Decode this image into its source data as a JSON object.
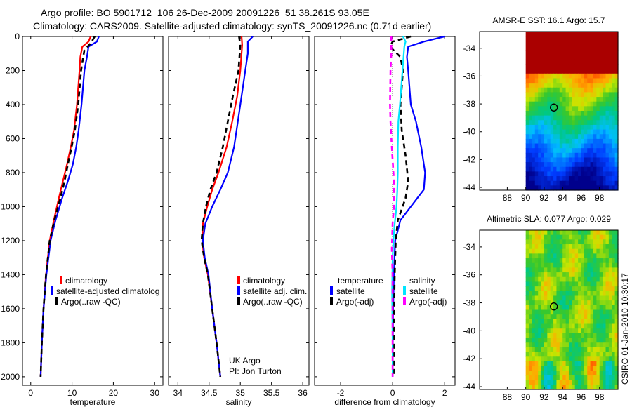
{
  "title_line1": "Argo profile: BO 5901712_106 26-Dec-2009 20091226_51 38.261S 93.05E",
  "title_line2": "Climatology: CARS2009. Satellite-adjusted climatology: synTS_20091226.nc (0.71d earlier)",
  "side_credit": "CSIRO 01-Jan-2010 10:30:17",
  "colors": {
    "climatology": "#ff0000",
    "satellite": "#0000ff",
    "argo": "#000000",
    "cyan": "#00e5ff",
    "magenta": "#ff00ff"
  },
  "chart_data": [
    {
      "type": "line",
      "id": "temperature",
      "xlabel": "temperature",
      "xlim": [
        -2,
        32
      ],
      "ylim": [
        0,
        2050
      ],
      "xticks": [
        "0",
        "10",
        "20",
        "30"
      ],
      "xtick_values": [
        0,
        10,
        20,
        30
      ],
      "yticks": [
        "0",
        "200",
        "400",
        "600",
        "800",
        "1000",
        "1200",
        "1400",
        "1600",
        "1800",
        "2000"
      ],
      "ytick_values": [
        0,
        200,
        400,
        600,
        800,
        1000,
        1200,
        1400,
        1600,
        1800,
        2000
      ],
      "legend": [
        "climatology",
        "satellite-adjusted climatolog",
        "Argo(..raw -QC)"
      ],
      "series": [
        {
          "name": "climatology",
          "color": "#ff0000",
          "points": [
            [
              14.5,
              0
            ],
            [
              14,
              30
            ],
            [
              12.5,
              60
            ],
            [
              12,
              120
            ],
            [
              11.8,
              200
            ],
            [
              11.2,
              400
            ],
            [
              10.5,
              550
            ],
            [
              9.7,
              650
            ],
            [
              8.8,
              750
            ],
            [
              7.8,
              850
            ],
            [
              6.8,
              950
            ],
            [
              5.6,
              1080
            ],
            [
              4.6,
              1200
            ],
            [
              3.7,
              1400
            ],
            [
              3.1,
              1600
            ],
            [
              2.7,
              1800
            ],
            [
              2.4,
              2000
            ]
          ]
        },
        {
          "name": "satellite-adjusted climatolog",
          "color": "#0000ff",
          "points": [
            [
              16.5,
              0
            ],
            [
              16,
              30
            ],
            [
              14,
              60
            ],
            [
              13.6,
              120
            ],
            [
              13,
              200
            ],
            [
              12.3,
              400
            ],
            [
              11.6,
              550
            ],
            [
              11,
              650
            ],
            [
              10.2,
              750
            ],
            [
              9,
              850
            ],
            [
              7.6,
              950
            ],
            [
              6,
              1080
            ],
            [
              4.8,
              1200
            ],
            [
              3.8,
              1400
            ],
            [
              3.1,
              1600
            ],
            [
              2.7,
              1800
            ],
            [
              2.4,
              2000
            ]
          ]
        },
        {
          "name": "Argo(..raw -QC)",
          "color": "#000000",
          "dash": true,
          "points": [
            [
              15.5,
              0
            ],
            [
              14.5,
              40
            ],
            [
              13,
              80
            ],
            [
              12.7,
              120
            ],
            [
              12.2,
              200
            ],
            [
              11.5,
              400
            ],
            [
              10.7,
              550
            ],
            [
              9.9,
              650
            ],
            [
              9,
              750
            ],
            [
              8.2,
              850
            ],
            [
              7.2,
              950
            ],
            [
              5.7,
              1080
            ],
            [
              4.6,
              1200
            ],
            [
              3.7,
              1400
            ],
            [
              3.1,
              1600
            ],
            [
              2.7,
              1800
            ],
            [
              2.4,
              2000
            ]
          ]
        }
      ]
    },
    {
      "type": "line",
      "id": "salinity",
      "xlabel": "salinity",
      "xlim": [
        33.85,
        36.1
      ],
      "ylim": [
        0,
        2050
      ],
      "xticks": [
        "34",
        "34.5",
        "35",
        "35.5",
        "36"
      ],
      "xtick_values": [
        34,
        34.5,
        35,
        35.5,
        36
      ],
      "legend": [
        "climatology",
        "satellite adj. clim.",
        "Argo(..raw -QC)"
      ],
      "annotations": [
        "UK Argo",
        "PI: Jon Turton"
      ],
      "series": [
        {
          "name": "climatology",
          "color": "#ff0000",
          "points": [
            [
              35.02,
              0
            ],
            [
              35.03,
              50
            ],
            [
              35.0,
              200
            ],
            [
              34.95,
              350
            ],
            [
              34.87,
              500
            ],
            [
              34.78,
              650
            ],
            [
              34.65,
              800
            ],
            [
              34.55,
              900
            ],
            [
              34.47,
              1000
            ],
            [
              34.4,
              1100
            ],
            [
              34.39,
              1200
            ],
            [
              34.42,
              1300
            ],
            [
              34.48,
              1400
            ],
            [
              34.55,
              1600
            ],
            [
              34.62,
              1800
            ],
            [
              34.68,
              2000
            ]
          ]
        },
        {
          "name": "satellite adj. clim.",
          "color": "#0000ff",
          "points": [
            [
              35.2,
              0
            ],
            [
              35.12,
              30
            ],
            [
              35.12,
              100
            ],
            [
              35.08,
              200
            ],
            [
              35.02,
              350
            ],
            [
              34.96,
              500
            ],
            [
              34.9,
              650
            ],
            [
              34.8,
              800
            ],
            [
              34.68,
              900
            ],
            [
              34.55,
              1000
            ],
            [
              34.44,
              1100
            ],
            [
              34.4,
              1200
            ],
            [
              34.43,
              1300
            ],
            [
              34.49,
              1400
            ],
            [
              34.55,
              1600
            ],
            [
              34.62,
              1800
            ],
            [
              34.68,
              2000
            ]
          ]
        },
        {
          "name": "Argo(..raw -QC)",
          "color": "#000000",
          "dash": true,
          "points": [
            [
              34.98,
              0
            ],
            [
              35.0,
              50
            ],
            [
              34.97,
              200
            ],
            [
              34.88,
              350
            ],
            [
              34.8,
              500
            ],
            [
              34.72,
              650
            ],
            [
              34.62,
              800
            ],
            [
              34.52,
              900
            ],
            [
              34.45,
              1000
            ],
            [
              34.4,
              1100
            ],
            [
              34.38,
              1200
            ],
            [
              34.42,
              1300
            ],
            [
              34.48,
              1400
            ],
            [
              34.55,
              1600
            ],
            [
              34.62,
              1800
            ],
            [
              34.68,
              2000
            ]
          ]
        }
      ]
    },
    {
      "type": "line",
      "id": "difference",
      "xlabel": "difference from climatology",
      "xlim": [
        -3,
        2.4
      ],
      "ylim": [
        0,
        2050
      ],
      "xticks": [
        "-2",
        "0",
        "2"
      ],
      "xtick_values": [
        -2,
        0,
        2
      ],
      "legend_titles": [
        "temperature",
        "salinity"
      ],
      "legend": [
        "satellite",
        "Argo(-adj)",
        "satellite",
        "Argo(-adj)"
      ],
      "series": [
        {
          "name": "satellite",
          "color": "#0000ff",
          "points": [
            [
              2.0,
              0
            ],
            [
              1.2,
              30
            ],
            [
              0.6,
              60
            ],
            [
              0.55,
              120
            ],
            [
              0.6,
              200
            ],
            [
              0.7,
              400
            ],
            [
              0.9,
              500
            ],
            [
              1.1,
              650
            ],
            [
              1.25,
              800
            ],
            [
              1.2,
              900
            ],
            [
              0.7,
              1000
            ],
            [
              0.3,
              1080
            ],
            [
              0.1,
              1200
            ],
            [
              0.05,
              1400
            ],
            [
              0.02,
              1600
            ],
            [
              0.01,
              1800
            ],
            [
              0,
              2000
            ]
          ]
        },
        {
          "name": "Argo(-adj)",
          "color": "#000000",
          "dash": true,
          "points": [
            [
              0.7,
              0
            ],
            [
              0,
              30
            ],
            [
              -0.1,
              60
            ],
            [
              0.3,
              120
            ],
            [
              0.4,
              200
            ],
            [
              0.3,
              400
            ],
            [
              0.35,
              550
            ],
            [
              0.5,
              700
            ],
            [
              0.6,
              850
            ],
            [
              0.5,
              950
            ],
            [
              0.2,
              1080
            ],
            [
              0.12,
              1200
            ],
            [
              0.08,
              1400
            ],
            [
              0.06,
              1600
            ],
            [
              0.05,
              1800
            ],
            [
              0.04,
              2000
            ]
          ]
        },
        {
          "name": "satellite",
          "color": "#00e5ff",
          "points": [
            [
              0.4,
              0
            ],
            [
              0.5,
              30
            ],
            [
              0.45,
              60
            ],
            [
              0.38,
              200
            ],
            [
              0.28,
              400
            ],
            [
              0.22,
              500
            ],
            [
              0.2,
              650
            ],
            [
              0.2,
              800
            ],
            [
              0.18,
              900
            ],
            [
              0.15,
              1000
            ],
            [
              0.08,
              1100
            ],
            [
              0.03,
              1200
            ],
            [
              0,
              1300
            ],
            [
              -0.02,
              1500
            ],
            [
              0,
              1800
            ],
            [
              0,
              2000
            ]
          ]
        },
        {
          "name": "Argo(-adj)",
          "color": "#ff00ff",
          "dash": true,
          "points": [
            [
              -0.05,
              0
            ],
            [
              -0.05,
              100
            ],
            [
              -0.08,
              200
            ],
            [
              -0.1,
              400
            ],
            [
              -0.08,
              500
            ],
            [
              -0.03,
              650
            ],
            [
              0.05,
              850
            ],
            [
              0.05,
              1000
            ],
            [
              0,
              1100
            ],
            [
              -0.03,
              1250
            ],
            [
              0,
              1400
            ],
            [
              0,
              2000
            ]
          ]
        }
      ]
    },
    {
      "type": "heatmap",
      "id": "sst_map",
      "title": "AMSR-E SST: 16.1 Argo: 15.7",
      "xlim": [
        85,
        100
      ],
      "ylim": [
        -44.2,
        -32.8
      ],
      "xticks": [
        "88",
        "90",
        "92",
        "94",
        "96",
        "98"
      ],
      "xtick_values": [
        88,
        90,
        92,
        94,
        96,
        98
      ],
      "yticks": [
        "-34",
        "-36",
        "-38",
        "-40",
        "-42",
        "-44"
      ],
      "ytick_values": [
        -34,
        -36,
        -38,
        -40,
        -42,
        -44
      ],
      "data_lon_start": 90,
      "marker": [
        93.05,
        -38.26
      ]
    },
    {
      "type": "heatmap",
      "id": "sla_map",
      "title": "Altimetric SLA: 0.077 Argo: 0.029",
      "xlim": [
        85,
        100
      ],
      "ylim": [
        -44.2,
        -32.8
      ],
      "xticks": [
        "88",
        "90",
        "92",
        "94",
        "96",
        "98"
      ],
      "xtick_values": [
        88,
        90,
        92,
        94,
        96,
        98
      ],
      "yticks": [
        "-34",
        "-36",
        "-38",
        "-40",
        "-42",
        "-44"
      ],
      "ytick_values": [
        -34,
        -36,
        -38,
        -40,
        -42,
        -44
      ],
      "data_lon_start": 90,
      "marker": [
        93.05,
        -38.26
      ]
    }
  ]
}
